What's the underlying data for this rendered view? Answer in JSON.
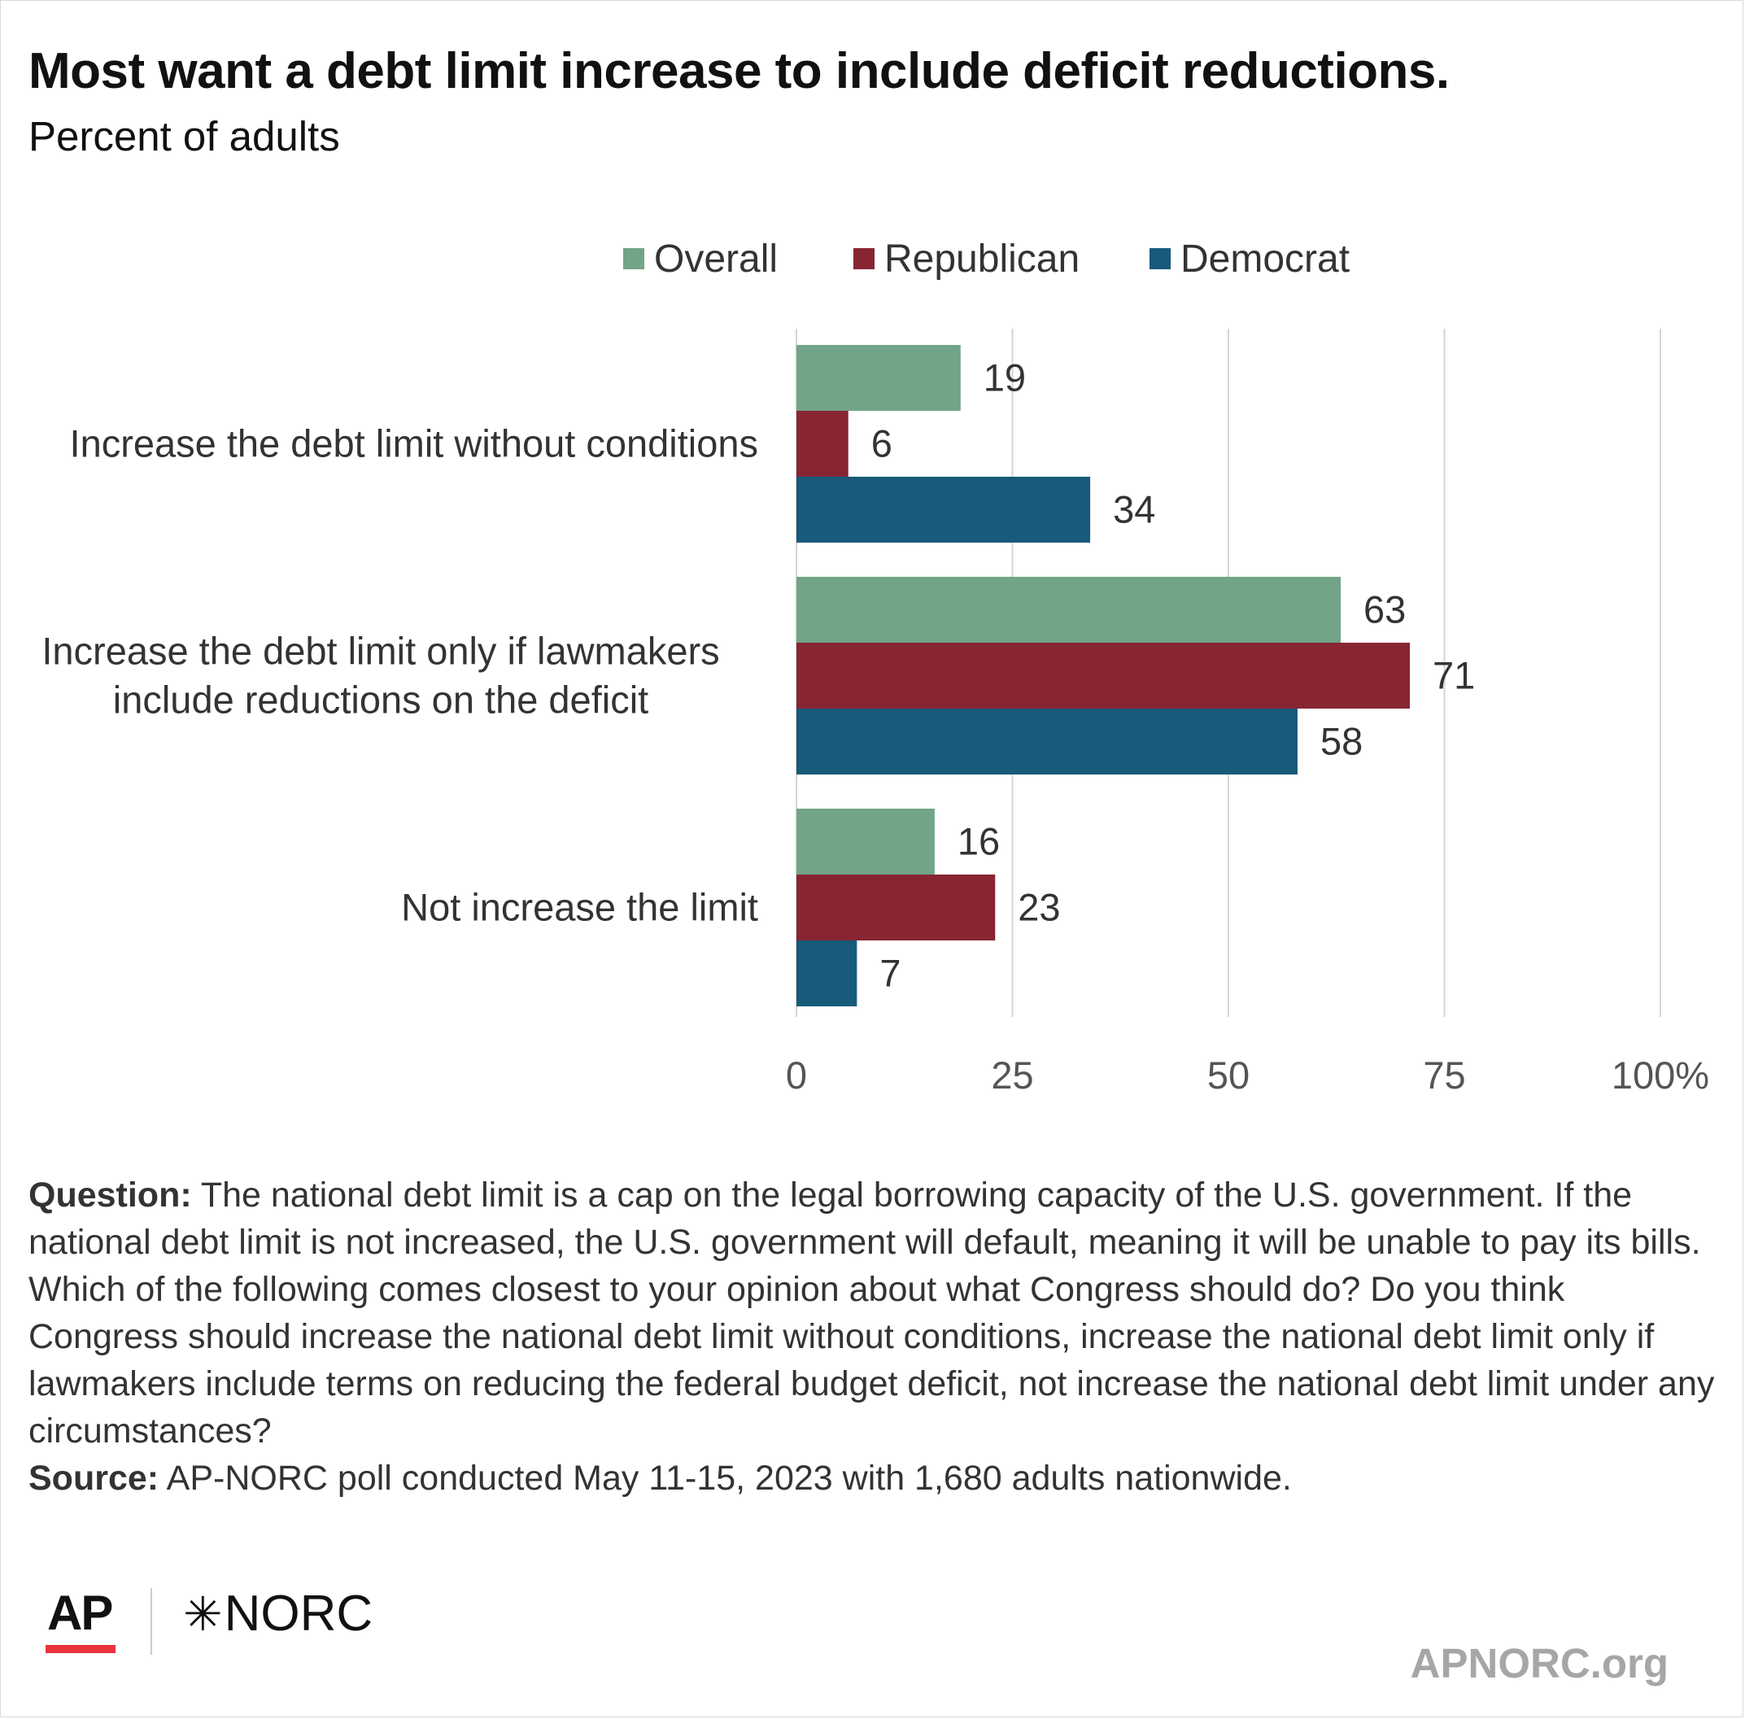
{
  "title": "Most want a debt limit increase to include deficit reductions.",
  "subtitle": "Percent of adults",
  "colors": {
    "overall": "#72a487",
    "republican": "#882533",
    "democrat": "#175a7a"
  },
  "chart_data": {
    "type": "bar",
    "orientation": "horizontal",
    "title": "Most want a debt limit increase to include deficit reductions.",
    "subtitle": "Percent of adults",
    "categories": [
      [
        "Increase the debt limit without conditions"
      ],
      [
        "Increase the debt limit only if lawmakers",
        "include reductions on the deficit"
      ],
      [
        "Not increase the limit"
      ]
    ],
    "series": [
      {
        "name": "Overall",
        "color": "#72a487",
        "values": [
          19,
          63,
          16
        ]
      },
      {
        "name": "Republican",
        "color": "#882533",
        "values": [
          6,
          71,
          23
        ]
      },
      {
        "name": "Democrat",
        "color": "#175a7a",
        "values": [
          34,
          58,
          7
        ]
      }
    ],
    "xlim": [
      0,
      100
    ],
    "ticks": [
      0,
      25,
      50,
      75,
      100
    ],
    "tick_labels": [
      "0",
      "25",
      "50",
      "75",
      "100%"
    ],
    "grid": true,
    "legend": "top"
  },
  "notes": {
    "question_label": "Question:",
    "question_text": " The national debt limit is a cap on the legal borrowing capacity of the U.S. government. If the national debt limit is not increased, the U.S. government will default, meaning it will be unable to pay its bills. Which of the following comes closest to your opinion about what Congress should do? Do you think Congress should increase the national debt limit without conditions, increase the national debt limit only if lawmakers include terms on reducing the federal budget deficit, not increase the national debt limit under any circumstances?",
    "source_label": "Source:",
    "source_text": " AP-NORC poll conducted May 11-15, 2023 with 1,680 adults nationwide."
  },
  "branding": {
    "ap": "AP",
    "norc": "NORC",
    "site": "APNORC.org"
  }
}
